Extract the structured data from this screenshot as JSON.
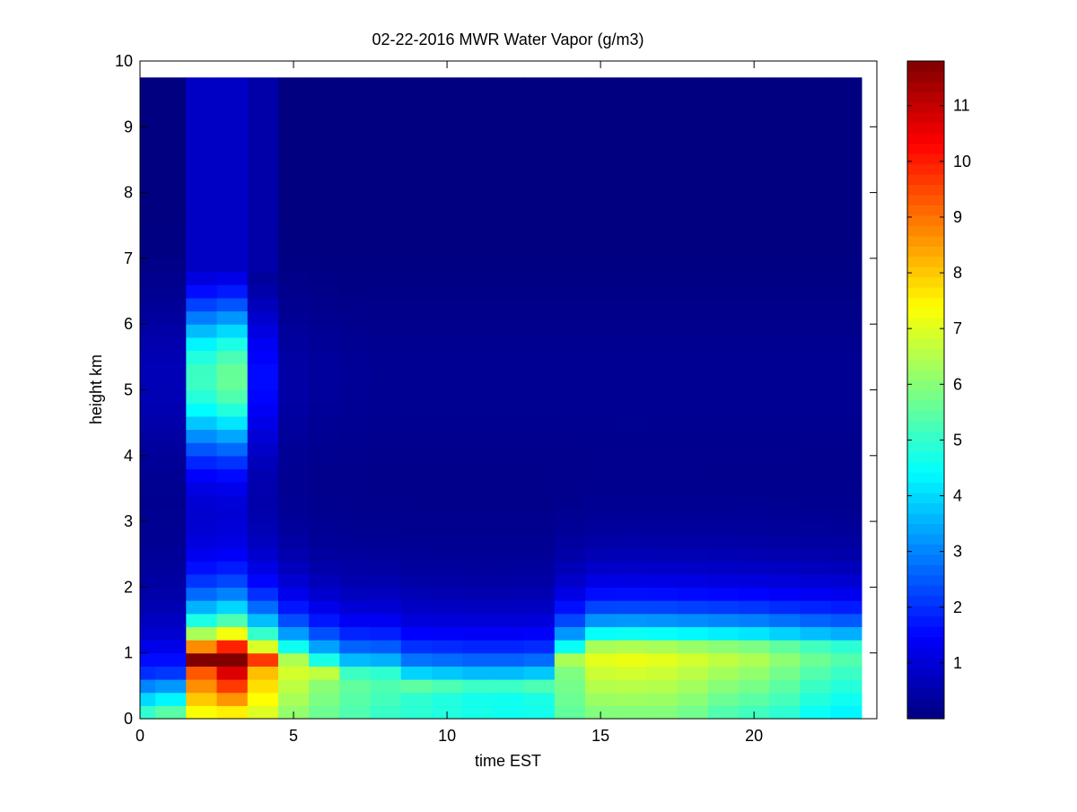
{
  "chart_data": {
    "type": "heatmap",
    "title": "02-22-2016 MWR Water Vapor (g/m3)",
    "xlabel": "time EST",
    "ylabel": "height km",
    "xlim": [
      0,
      24
    ],
    "ylim": [
      0,
      10
    ],
    "x_ticks": [
      0,
      5,
      10,
      15,
      20
    ],
    "y_ticks": [
      0,
      1,
      2,
      3,
      4,
      5,
      6,
      7,
      8,
      9,
      10
    ],
    "colorbar": {
      "colormap": "jet",
      "range": [
        0,
        11.8
      ],
      "ticks": [
        1,
        2,
        3,
        4,
        5,
        6,
        7,
        8,
        9,
        10,
        11
      ]
    },
    "grid": false,
    "x": [
      0.5,
      1.5,
      2.5,
      3.5,
      4.5,
      5.5,
      6.5,
      7.5,
      8.5,
      9.5,
      10.5,
      11.5,
      12.5,
      13.5,
      14.5,
      15.5,
      16.5,
      17.5,
      18.5,
      19.5,
      20.5,
      21.5,
      22.5,
      23.5
    ],
    "y": [
      0.1,
      0.3,
      0.5,
      0.7,
      0.9,
      1.1,
      1.3,
      1.5,
      1.7,
      1.9,
      2.1,
      2.3,
      2.5,
      2.7,
      2.9,
      3.1,
      3.3,
      3.5,
      3.7,
      3.9,
      4.1,
      4.3,
      4.5,
      4.7,
      4.9,
      5.1,
      5.3,
      5.5,
      5.7,
      5.9,
      6.1,
      6.3,
      6.5,
      6.7,
      6.9,
      7.1,
      7.3,
      7.5,
      7.7,
      7.9,
      8.1,
      8.3,
      8.5,
      8.7,
      8.9,
      9.1,
      9.3,
      9.5,
      9.7
    ],
    "profiles": {
      "top_km": 9.75,
      "columns": [
        {
          "x0": 0.0,
          "x1": 0.5,
          "base": 5.5,
          "peak": 1.0,
          "peak_h": 0.9,
          "top": 0.6,
          "mid": 0.3
        },
        {
          "x0": 0.5,
          "x1": 1.5,
          "base": 6.0,
          "peak": 1.0,
          "peak_h": 0.9,
          "top": 0.6,
          "mid": 0.3
        },
        {
          "x0": 1.5,
          "x1": 2.5,
          "base": 7.0,
          "peak": 10.0,
          "peak_h": 0.9,
          "top": 5.0,
          "mid": 1.0
        },
        {
          "x0": 2.5,
          "x1": 3.5,
          "base": 7.0,
          "peak": 11.8,
          "peak_h": 0.9,
          "top": 5.5,
          "mid": 1.0
        },
        {
          "x0": 3.5,
          "x1": 4.5,
          "base": 6.8,
          "peak": 8.5,
          "peak_h": 0.9,
          "top": 1.5,
          "mid": 0.6
        },
        {
          "x0": 4.5,
          "x1": 5.5,
          "base": 6.0,
          "peak": 7.0,
          "peak_h": 0.8,
          "top": 0.4,
          "mid": 0.3
        },
        {
          "x0": 5.5,
          "x1": 6.5,
          "base": 5.6,
          "peak": 6.2,
          "peak_h": 0.7,
          "top": 0.3,
          "mid": 0.2
        },
        {
          "x0": 6.5,
          "x1": 7.5,
          "base": 5.3,
          "peak": 5.6,
          "peak_h": 0.6,
          "top": 0.25,
          "mid": 0.2
        },
        {
          "x0": 7.5,
          "x1": 8.5,
          "base": 5.0,
          "peak": 5.4,
          "peak_h": 0.6,
          "top": 0.2,
          "mid": 0.2
        },
        {
          "x0": 8.5,
          "x1": 9.5,
          "base": 4.9,
          "peak": 5.0,
          "peak_h": 0.5,
          "top": 0.2,
          "mid": 0.2
        },
        {
          "x0": 9.5,
          "x1": 10.5,
          "base": 4.8,
          "peak": 4.8,
          "peak_h": 0.5,
          "top": 0.2,
          "mid": 0.2
        },
        {
          "x0": 10.5,
          "x1": 11.5,
          "base": 4.7,
          "peak": 4.6,
          "peak_h": 0.5,
          "top": 0.2,
          "mid": 0.2
        },
        {
          "x0": 11.5,
          "x1": 12.5,
          "base": 4.6,
          "peak": 4.6,
          "peak_h": 0.5,
          "top": 0.2,
          "mid": 0.2
        },
        {
          "x0": 12.5,
          "x1": 13.5,
          "base": 4.6,
          "peak": 4.8,
          "peak_h": 0.5,
          "top": 0.2,
          "mid": 0.2
        },
        {
          "x0": 13.5,
          "x1": 14.5,
          "base": 5.5,
          "peak": 6.0,
          "peak_h": 0.9,
          "top": 0.2,
          "mid": 0.2
        },
        {
          "x0": 14.5,
          "x1": 15.5,
          "base": 5.8,
          "peak": 7.2,
          "peak_h": 1.0,
          "top": 0.2,
          "mid": 0.2
        },
        {
          "x0": 15.5,
          "x1": 16.5,
          "base": 5.8,
          "peak": 7.3,
          "peak_h": 1.0,
          "top": 0.2,
          "mid": 0.2
        },
        {
          "x0": 16.5,
          "x1": 17.5,
          "base": 5.8,
          "peak": 7.2,
          "peak_h": 1.0,
          "top": 0.2,
          "mid": 0.2
        },
        {
          "x0": 17.5,
          "x1": 18.5,
          "base": 5.6,
          "peak": 7.0,
          "peak_h": 1.0,
          "top": 0.2,
          "mid": 0.2
        },
        {
          "x0": 18.5,
          "x1": 19.5,
          "base": 5.2,
          "peak": 6.8,
          "peak_h": 1.0,
          "top": 0.2,
          "mid": 0.2
        },
        {
          "x0": 19.5,
          "x1": 20.5,
          "base": 5.0,
          "peak": 6.6,
          "peak_h": 1.0,
          "top": 0.2,
          "mid": 0.2
        },
        {
          "x0": 20.5,
          "x1": 21.5,
          "base": 4.8,
          "peak": 6.2,
          "peak_h": 1.0,
          "top": 0.2,
          "mid": 0.2
        },
        {
          "x0": 21.5,
          "x1": 22.5,
          "base": 4.4,
          "peak": 5.8,
          "peak_h": 1.0,
          "top": 0.2,
          "mid": 0.2
        },
        {
          "x0": 22.5,
          "x1": 23.5,
          "base": 4.2,
          "peak": 5.5,
          "peak_h": 1.0,
          "top": 0.2,
          "mid": 0.2
        }
      ]
    }
  }
}
